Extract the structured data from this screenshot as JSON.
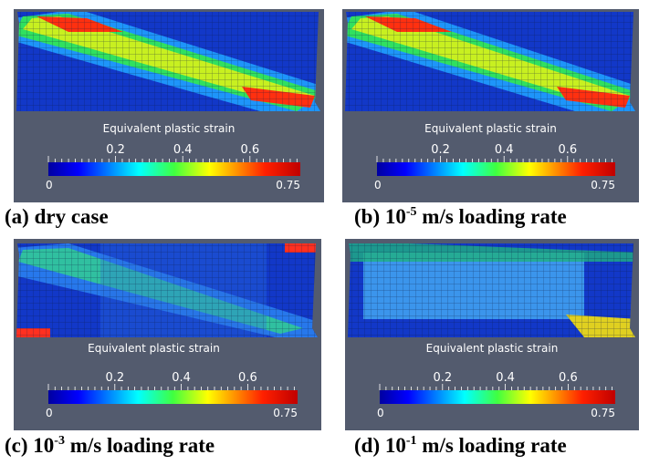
{
  "panels": [
    {
      "caption": {
        "prefix": "(a) dry case",
        "exponent": null,
        "suffix": null
      },
      "colorbar": {
        "title": "Equivalent plastic strain",
        "ticks": [
          "0.2",
          "0.4",
          "0.6"
        ],
        "min": "0",
        "max": "0.75"
      }
    },
    {
      "caption": {
        "prefix": "(b) 10",
        "exponent": "-5",
        "suffix": " m/s loading rate"
      },
      "colorbar": {
        "title": "Equivalent plastic strain",
        "ticks": [
          "0.2",
          "0.4",
          "0.6"
        ],
        "min": "0",
        "max": "0.75"
      }
    },
    {
      "caption": {
        "prefix": "(c) 10",
        "exponent": "-3",
        "suffix": " m/s loading rate"
      },
      "colorbar": {
        "title": "Equivalent plastic strain",
        "ticks": [
          "0.2",
          "0.4",
          "0.6"
        ],
        "min": "0",
        "max": "0.75"
      }
    },
    {
      "caption": {
        "prefix": "(d) 10",
        "exponent": "-1",
        "suffix": " m/s loading rate"
      },
      "colorbar": {
        "title": "Equivalent plastic strain",
        "ticks": [
          "0.2",
          "0.4",
          "0.6"
        ],
        "min": "0",
        "max": "0.75"
      }
    }
  ]
}
